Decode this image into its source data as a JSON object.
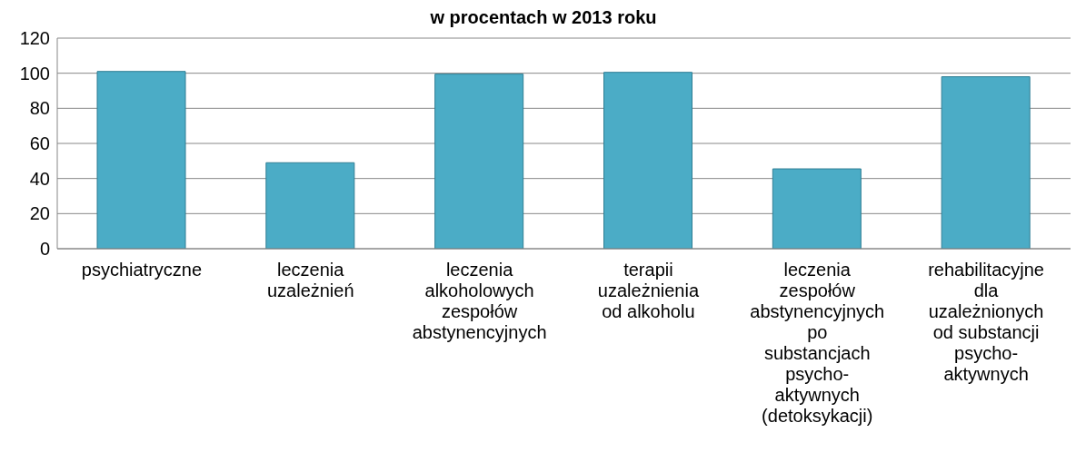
{
  "chart_data": {
    "type": "bar",
    "title": "w procentach w 2013 roku",
    "categories": [
      "psychiatryczne",
      "leczenia uzależnień",
      "leczenia alkoholowych zespołów abstynencyjnych",
      "terapii uzależnienia od alkoholu",
      "leczenia zespołów abstynencyjnych po substancjach psycho-aktywnych (detoksykacji)",
      "rehabilitacyjne dla uzależnionych od substancji psycho-aktywnych"
    ],
    "values": [
      101,
      49,
      99.5,
      100.5,
      45.5,
      98
    ],
    "color": "#4bacc6",
    "ylim": [
      0,
      120
    ],
    "yticks": [
      0,
      20,
      40,
      60,
      80,
      100,
      120
    ],
    "grid": "y",
    "legend": false
  }
}
